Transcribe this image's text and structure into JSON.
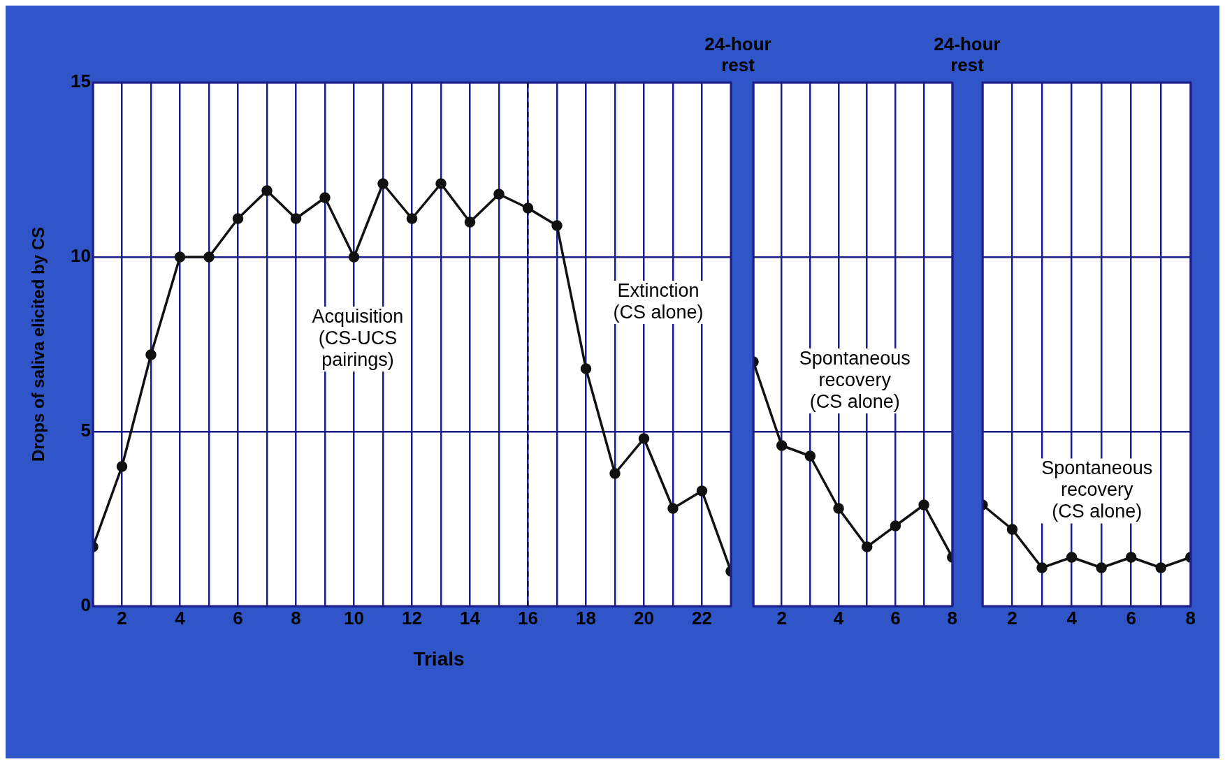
{
  "chart_data": [
    {
      "type": "line",
      "ylabel": "Drops of saliva elicited by CS",
      "xlabel": "Trials",
      "x": [
        1,
        2,
        3,
        4,
        5,
        6,
        7,
        8,
        9,
        10,
        11,
        12,
        13,
        14,
        15,
        16,
        17,
        18,
        19,
        20,
        21,
        22,
        23
      ],
      "series": [
        {
          "color": "#111111",
          "values": [
            1.7,
            4.0,
            7.2,
            10,
            10,
            11.1,
            11.9,
            11.1,
            11.7,
            10,
            12.1,
            11.1,
            12.1,
            11.0,
            11.8,
            11.4,
            10.9,
            6.8,
            3.8,
            4.8,
            2.8,
            3.3,
            1.0
          ]
        }
      ],
      "xlim": [
        1,
        23
      ],
      "xticks": [
        {
          "value": 1,
          "label": null
        },
        2,
        {
          "value": 3,
          "label": null
        },
        4,
        {
          "value": 5,
          "label": null
        },
        6,
        {
          "value": 7,
          "label": null
        },
        8,
        {
          "value": 9,
          "label": null
        },
        10,
        {
          "value": 11,
          "label": null
        },
        12,
        {
          "value": 13,
          "label": null
        },
        14,
        {
          "value": 15,
          "label": null
        },
        16,
        {
          "value": 17,
          "label": null
        },
        18,
        {
          "value": 19,
          "label": null
        },
        20,
        {
          "value": 21,
          "label": null
        },
        22,
        {
          "value": 23,
          "label": null
        }
      ],
      "ylim": [
        0,
        15
      ],
      "yticks": [
        0,
        5,
        10,
        15
      ],
      "grid": true,
      "marker": "circle",
      "line_style": "solid",
      "ref_lines": [
        {
          "axis": "x",
          "value": 16,
          "color": "#111111",
          "line_style": "dashed"
        }
      ],
      "annotations": [
        "Acquisition\n(CS-UCS\npairings)",
        "Extinction\n(CS alone)"
      ]
    },
    {
      "type": "line",
      "x": [
        1,
        2,
        3,
        4,
        5,
        6,
        7,
        8
      ],
      "series": [
        {
          "color": "#111111",
          "values": [
            7.0,
            4.6,
            4.3,
            2.8,
            1.7,
            2.3,
            2.9,
            1.4
          ]
        }
      ],
      "xlim": [
        1,
        8
      ],
      "xticks": [
        {
          "value": 1,
          "label": null
        },
        2,
        {
          "value": 3,
          "label": null
        },
        4,
        {
          "value": 5,
          "label": null
        },
        6,
        {
          "value": 7,
          "label": null
        },
        8
      ],
      "ylim": [
        0,
        15
      ],
      "yticks": [
        0,
        5,
        10,
        15
      ],
      "tick_labels": "x",
      "grid": true,
      "marker": "circle",
      "line_style": "solid",
      "annotations": [
        "24-hour\nrest",
        "Spontaneous\nrecovery\n(CS alone)"
      ]
    },
    {
      "type": "line",
      "x": [
        1,
        2,
        3,
        4,
        5,
        6,
        7,
        8
      ],
      "series": [
        {
          "color": "#111111",
          "values": [
            2.9,
            2.2,
            1.1,
            1.4,
            1.1,
            1.4,
            1.1,
            1.4
          ]
        }
      ],
      "xlim": [
        1,
        8
      ],
      "xticks": [
        {
          "value": 1,
          "label": null
        },
        2,
        {
          "value": 3,
          "label": null
        },
        4,
        {
          "value": 5,
          "label": null
        },
        6,
        {
          "value": 7,
          "label": null
        },
        8
      ],
      "ylim": [
        0,
        15
      ],
      "yticks": [
        0,
        5,
        10,
        15
      ],
      "tick_labels": "x",
      "grid": true,
      "marker": "circle",
      "line_style": "solid",
      "annotations": [
        "24-hour\nrest",
        "Spontaneous\nrecovery\n(CS alone)"
      ]
    }
  ]
}
